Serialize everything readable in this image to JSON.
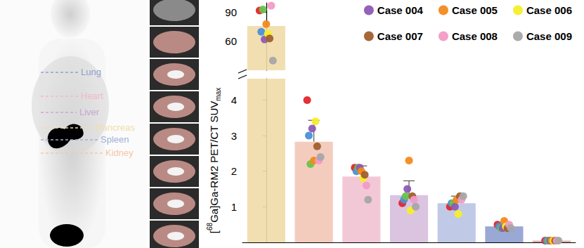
{
  "chart_data": {
    "type": "bar",
    "y_label": "[68Ga]Ga-RM2 PET/CT SUVmax",
    "categories": [
      null,
      null,
      null,
      null,
      null,
      null,
      null
    ],
    "values": [
      76,
      2.83,
      1.85,
      1.33,
      1.1,
      0.45,
      0.05
    ],
    "error": [
      null,
      0.6,
      0.3,
      0.4,
      0.2,
      0.08,
      0.02
    ],
    "colors": [
      "#f1dca9",
      "#f3c6b6",
      "#f2c2d2",
      "#d6bedb",
      "#b9c4e4",
      "#8e9fcf",
      "#d9a3a3"
    ],
    "axis_segments": [
      {
        "ylim": [
          0,
          4.6
        ],
        "yticks": [
          1,
          2,
          3,
          4
        ]
      },
      {
        "ylim": [
          30,
          100
        ],
        "yticks": [
          60,
          90
        ]
      }
    ],
    "series": [
      {
        "color": "#e3262a",
        "values": [
          92,
          4.0,
          2.1,
          1.1,
          1.0,
          0.5,
          0.05
        ]
      },
      {
        "color": "#4a90d9",
        "values": [
          70,
          3.0,
          2.0,
          1.2,
          1.1,
          0.45,
          0.05
        ]
      },
      {
        "color": "#6cc24a",
        "values": [
          93,
          2.2,
          2.1,
          1.3,
          1.1,
          0.4,
          0.05
        ]
      },
      {
        "name": "Case 004",
        "color": "#8e5bb5",
        "values": [
          62,
          3.2,
          2.1,
          1.5,
          1.0,
          0.4,
          0.05
        ]
      },
      {
        "name": "Case 005",
        "color": "#f28a1e",
        "values": [
          78,
          2.3,
          2.0,
          2.3,
          1.2,
          0.6,
          0.05
        ]
      },
      {
        "name": "Case 006",
        "color": "#f5ee2a",
        "values": [
          68,
          3.4,
          1.8,
          0.9,
          0.8,
          0.45,
          0.05
        ]
      },
      {
        "name": "Case 007",
        "color": "#a0602f",
        "values": [
          63,
          2.7,
          1.9,
          1.3,
          1.3,
          0.4,
          0.05
        ]
      },
      {
        "name": "Case 008",
        "color": "#f29bc8",
        "values": [
          97,
          2.3,
          1.6,
          1.2,
          1.2,
          0.5,
          0.05
        ]
      },
      {
        "name": "Case 009",
        "color": "#a6a6a6",
        "values": [
          40,
          2.4,
          1.2,
          1.0,
          1.3,
          0.4,
          0.05
        ]
      }
    ],
    "grid": false,
    "legend": "top-right",
    "data_labels": false
  },
  "organ_labels": [
    {
      "text": "Lung",
      "color": "#8fa0cc"
    },
    {
      "text": "Heart",
      "color": "#f2b8c6"
    },
    {
      "text": "Liver",
      "color": "#c9a6cf"
    },
    {
      "text": "Pancreas",
      "color": "#f1dda9"
    },
    {
      "text": "Spleen",
      "color": "#9fb0d8"
    },
    {
      "text": "Kidney",
      "color": "#f3c8a8"
    }
  ]
}
